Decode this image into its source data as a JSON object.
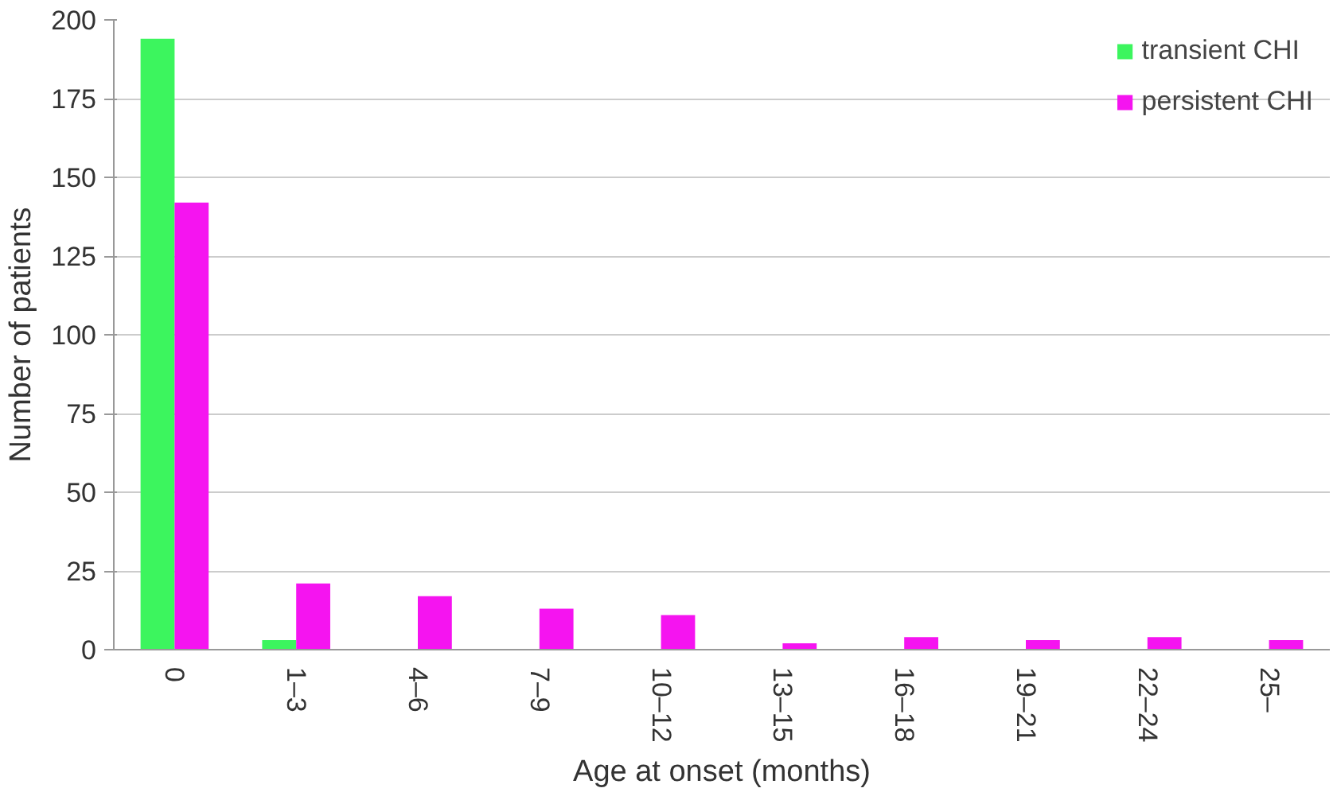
{
  "chart_data": {
    "type": "bar",
    "xlabel": "Age at onset (months)",
    "ylabel": "Number of patients",
    "categories": [
      "0",
      "1–3",
      "4–6",
      "7–9",
      "10–12",
      "13–15",
      "16–18",
      "19–21",
      "22–24",
      "25–"
    ],
    "series": [
      {
        "name": "transient CHI",
        "color": "#3cf55e",
        "values": [
          194,
          3,
          0,
          0,
          0,
          0,
          0,
          0,
          0,
          0
        ]
      },
      {
        "name": "persistent CHI",
        "color": "#f514f0",
        "values": [
          142,
          21,
          17,
          13,
          11,
          2,
          4,
          3,
          4,
          3
        ]
      }
    ],
    "ylim": [
      0,
      200
    ],
    "yticks": [
      0,
      25,
      50,
      75,
      100,
      125,
      150,
      175,
      200
    ],
    "grid": "y",
    "legend": "top right"
  }
}
